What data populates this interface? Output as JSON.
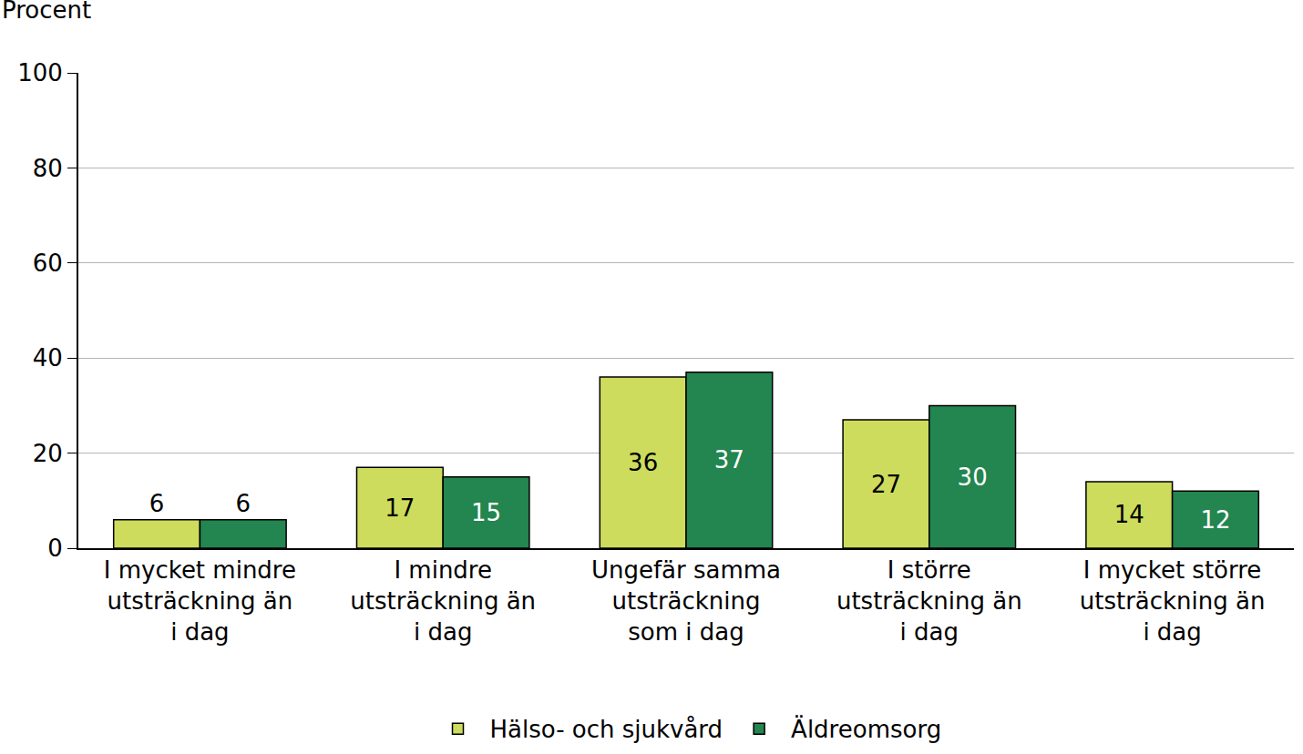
{
  "chart_data": {
    "type": "bar",
    "ylabel": "Procent",
    "categories": [
      "I mycket mindre utsträckning än i dag",
      "I mindre utsträckning än i dag",
      "Ungefär samma utsträckning som i dag",
      "I större utsträckning än i dag",
      "I mycket större utsträckning än i dag"
    ],
    "series": [
      {
        "name": "Hälso- och sjukvård",
        "color": "#cddc5c",
        "values": [
          6,
          17,
          36,
          27,
          14
        ]
      },
      {
        "name": "Äldreomsorg",
        "color": "#23854f",
        "values": [
          6,
          15,
          37,
          30,
          12
        ]
      }
    ],
    "ylim": [
      0,
      100
    ],
    "yticks": [
      0,
      20,
      40,
      60,
      80,
      100
    ],
    "grid": true,
    "legend": "bottom",
    "data_labels": true
  }
}
